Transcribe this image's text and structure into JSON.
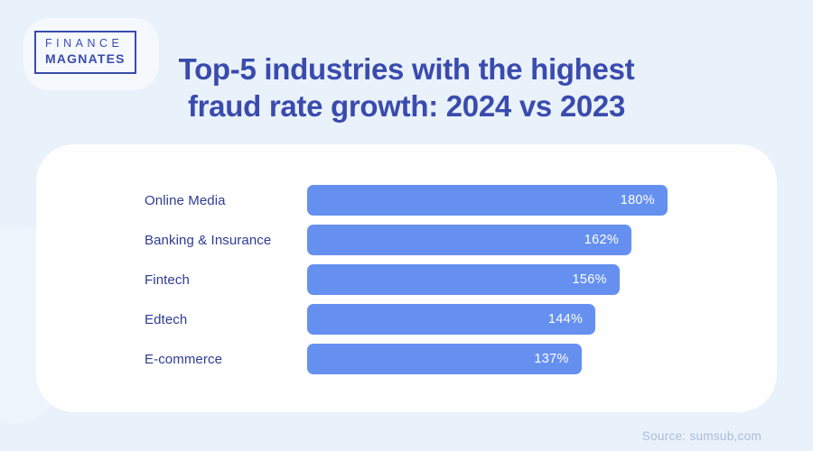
{
  "page": {
    "background_color": "#E9F1FA",
    "card_color": "#FEFEFF"
  },
  "logo": {
    "line1": "FINANCE",
    "line2": "MAGNATES",
    "color": "#3A4BAE"
  },
  "header": {
    "title_line1": "Top-5 industries with the highest",
    "title_line2": "fraud rate growth: 2024 vs 2023",
    "title_color": "#3A4BAE"
  },
  "source": {
    "label": "Source: sumsub,com",
    "color": "#A9BCDD"
  },
  "chart_data": {
    "type": "bar",
    "orientation": "horizontal",
    "title": "Top-5 industries with the highest fraud rate growth: 2024 vs 2023",
    "categories": [
      "Online Media",
      "Banking & Insurance",
      "Fintech",
      "Edtech",
      "E-commerce"
    ],
    "values": [
      180,
      162,
      156,
      144,
      137
    ],
    "value_labels": [
      "180%",
      "162%",
      "156%",
      "144%",
      "137%"
    ],
    "xlabel": "",
    "ylabel": "",
    "xlim": [
      0,
      180
    ],
    "grid": false,
    "legend": false,
    "bar_color": "#6590F0",
    "value_label_color": "#FFFFFF",
    "category_label_color": "#2E3C94"
  }
}
